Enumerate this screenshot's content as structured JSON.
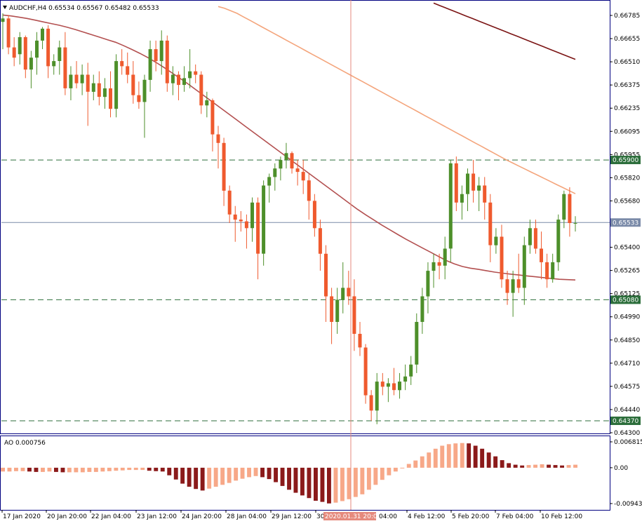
{
  "window": {
    "title": "AUDCHF,H4  0.65534 0.65567 0.65482 0.65533"
  },
  "indicator": {
    "label": "AO 0.000756"
  },
  "colors": {
    "bull": "#4d8f2a",
    "bear": "#ef5a2e",
    "ma_fast": "#b35050",
    "ma_mid": "#f4a57c",
    "ma_slow": "#7b1414",
    "ao_up": "#f7a888",
    "ao_down": "#8b1a1a",
    "level_line": "#2c6e3b",
    "price_line": "#7a8aa8",
    "crosshair": "#e58a7d",
    "frame": "#000080"
  },
  "price_axis": {
    "ticks": [
      "0.66785",
      "0.66655",
      "0.66510",
      "0.66375",
      "0.66235",
      "0.66095",
      "0.65955",
      "0.65820",
      "0.65680",
      "0.65540",
      "0.65400",
      "0.65265",
      "0.65125",
      "0.64990",
      "0.64850",
      "0.64710",
      "0.64575",
      "0.64440",
      "0.64300"
    ],
    "tags": [
      {
        "text": "0.65900",
        "kind": "level"
      },
      {
        "text": "0.65533",
        "kind": "price"
      },
      {
        "text": "0.65080",
        "kind": "level"
      },
      {
        "text": "0.64370",
        "kind": "level"
      }
    ]
  },
  "ao_axis": {
    "ticks": [
      "0.006815",
      "0.00",
      "-0.009438"
    ]
  },
  "time_axis": {
    "labels": [
      "17 Jan 2020",
      "20 Jan 20:00",
      "22 Jan 04:00",
      "23 Jan 12:00",
      "24 Jan 20:00",
      "28 Jan 04:00",
      "29 Jan 12:00",
      "30",
      "4 Feb 12:00",
      "5 Feb 20:00",
      "7 Feb 04:00",
      "10 Feb 12:00"
    ],
    "crosshair_time": "2020.01.31 20:00",
    "crosshair_after": "04:00"
  },
  "chart_data": {
    "type": "candlestick",
    "symbol": "AUDCHF",
    "timeframe": "H4",
    "y_range": [
      0.643,
      0.6683
    ],
    "levels": [
      0.659,
      0.6508,
      0.6437
    ],
    "last_price": 0.65533,
    "candles": [
      {
        "o": 0.6671,
        "h": 0.6676,
        "l": 0.6655,
        "c": 0.6673
      },
      {
        "o": 0.6673,
        "h": 0.6675,
        "l": 0.6652,
        "c": 0.6656
      },
      {
        "o": 0.6656,
        "h": 0.6662,
        "l": 0.6645,
        "c": 0.665
      },
      {
        "o": 0.6652,
        "h": 0.6665,
        "l": 0.6646,
        "c": 0.6662
      },
      {
        "o": 0.6662,
        "h": 0.6663,
        "l": 0.6638,
        "c": 0.6643
      },
      {
        "o": 0.6643,
        "h": 0.6654,
        "l": 0.6632,
        "c": 0.665
      },
      {
        "o": 0.665,
        "h": 0.6665,
        "l": 0.664,
        "c": 0.666
      },
      {
        "o": 0.666,
        "h": 0.6668,
        "l": 0.6655,
        "c": 0.6667
      },
      {
        "o": 0.6667,
        "h": 0.6669,
        "l": 0.6638,
        "c": 0.6645
      },
      {
        "o": 0.6645,
        "h": 0.6652,
        "l": 0.664,
        "c": 0.6648
      },
      {
        "o": 0.6648,
        "h": 0.666,
        "l": 0.664,
        "c": 0.6656
      },
      {
        "o": 0.6656,
        "h": 0.6665,
        "l": 0.6628,
        "c": 0.6632
      },
      {
        "o": 0.6632,
        "h": 0.6645,
        "l": 0.6625,
        "c": 0.664
      },
      {
        "o": 0.664,
        "h": 0.6648,
        "l": 0.6632,
        "c": 0.6635
      },
      {
        "o": 0.6635,
        "h": 0.6646,
        "l": 0.6628,
        "c": 0.664
      },
      {
        "o": 0.664,
        "h": 0.6647,
        "l": 0.661,
        "c": 0.663
      },
      {
        "o": 0.663,
        "h": 0.664,
        "l": 0.6625,
        "c": 0.6635
      },
      {
        "o": 0.6635,
        "h": 0.6642,
        "l": 0.6622,
        "c": 0.6627
      },
      {
        "o": 0.6627,
        "h": 0.6638,
        "l": 0.662,
        "c": 0.6632
      },
      {
        "o": 0.6632,
        "h": 0.6642,
        "l": 0.6615,
        "c": 0.662
      },
      {
        "o": 0.662,
        "h": 0.6652,
        "l": 0.6615,
        "c": 0.6648
      },
      {
        "o": 0.6648,
        "h": 0.6655,
        "l": 0.664,
        "c": 0.6645
      },
      {
        "o": 0.6645,
        "h": 0.6653,
        "l": 0.6635,
        "c": 0.664
      },
      {
        "o": 0.664,
        "h": 0.6648,
        "l": 0.6623,
        "c": 0.6628
      },
      {
        "o": 0.6628,
        "h": 0.6636,
        "l": 0.662,
        "c": 0.6624
      },
      {
        "o": 0.6624,
        "h": 0.664,
        "l": 0.6603,
        "c": 0.6637
      },
      {
        "o": 0.6637,
        "h": 0.666,
        "l": 0.663,
        "c": 0.6655
      },
      {
        "o": 0.6655,
        "h": 0.666,
        "l": 0.6642,
        "c": 0.6648
      },
      {
        "o": 0.6648,
        "h": 0.6666,
        "l": 0.664,
        "c": 0.666
      },
      {
        "o": 0.666,
        "h": 0.6663,
        "l": 0.663,
        "c": 0.6635
      },
      {
        "o": 0.6635,
        "h": 0.6645,
        "l": 0.6628,
        "c": 0.664
      },
      {
        "o": 0.664,
        "h": 0.6642,
        "l": 0.6625,
        "c": 0.6634
      },
      {
        "o": 0.6634,
        "h": 0.6645,
        "l": 0.663,
        "c": 0.6638
      },
      {
        "o": 0.6638,
        "h": 0.6655,
        "l": 0.6632,
        "c": 0.6642
      },
      {
        "o": 0.6642,
        "h": 0.6646,
        "l": 0.6635,
        "c": 0.664
      },
      {
        "o": 0.664,
        "h": 0.6642,
        "l": 0.6617,
        "c": 0.6622
      },
      {
        "o": 0.6622,
        "h": 0.663,
        "l": 0.6615,
        "c": 0.6625
      },
      {
        "o": 0.6625,
        "h": 0.6626,
        "l": 0.6595,
        "c": 0.6605
      },
      {
        "o": 0.6605,
        "h": 0.661,
        "l": 0.6585,
        "c": 0.66
      },
      {
        "o": 0.66,
        "h": 0.6603,
        "l": 0.6563,
        "c": 0.6572
      },
      {
        "o": 0.6572,
        "h": 0.6575,
        "l": 0.6553,
        "c": 0.6558
      },
      {
        "o": 0.6558,
        "h": 0.6563,
        "l": 0.6542,
        "c": 0.6555
      },
      {
        "o": 0.6555,
        "h": 0.656,
        "l": 0.6548,
        "c": 0.6554
      },
      {
        "o": 0.6554,
        "h": 0.6558,
        "l": 0.6538,
        "c": 0.655
      },
      {
        "o": 0.655,
        "h": 0.6568,
        "l": 0.6542,
        "c": 0.6565
      },
      {
        "o": 0.6565,
        "h": 0.6568,
        "l": 0.652,
        "c": 0.6535
      },
      {
        "o": 0.6535,
        "h": 0.6578,
        "l": 0.6528,
        "c": 0.6575
      },
      {
        "o": 0.6575,
        "h": 0.6582,
        "l": 0.6565,
        "c": 0.658
      },
      {
        "o": 0.658,
        "h": 0.6588,
        "l": 0.6572,
        "c": 0.6585
      },
      {
        "o": 0.6585,
        "h": 0.6592,
        "l": 0.6578,
        "c": 0.659
      },
      {
        "o": 0.659,
        "h": 0.66,
        "l": 0.6585,
        "c": 0.6594
      },
      {
        "o": 0.6594,
        "h": 0.6595,
        "l": 0.6582,
        "c": 0.6585
      },
      {
        "o": 0.6585,
        "h": 0.659,
        "l": 0.6575,
        "c": 0.6583
      },
      {
        "o": 0.6583,
        "h": 0.659,
        "l": 0.657,
        "c": 0.6578
      },
      {
        "o": 0.6578,
        "h": 0.6582,
        "l": 0.6555,
        "c": 0.6566
      },
      {
        "o": 0.6566,
        "h": 0.657,
        "l": 0.6545,
        "c": 0.655
      },
      {
        "o": 0.655,
        "h": 0.6555,
        "l": 0.6525,
        "c": 0.6535
      },
      {
        "o": 0.6535,
        "h": 0.654,
        "l": 0.6495,
        "c": 0.651
      },
      {
        "o": 0.651,
        "h": 0.6515,
        "l": 0.6482,
        "c": 0.6495
      },
      {
        "o": 0.6495,
        "h": 0.6515,
        "l": 0.6488,
        "c": 0.6508
      },
      {
        "o": 0.6508,
        "h": 0.653,
        "l": 0.65,
        "c": 0.6515
      },
      {
        "o": 0.6515,
        "h": 0.6525,
        "l": 0.6505,
        "c": 0.651
      },
      {
        "o": 0.651,
        "h": 0.652,
        "l": 0.6478,
        "c": 0.6488
      },
      {
        "o": 0.6488,
        "h": 0.6495,
        "l": 0.6475,
        "c": 0.648
      },
      {
        "o": 0.648,
        "h": 0.6482,
        "l": 0.6447,
        "c": 0.6452
      },
      {
        "o": 0.6452,
        "h": 0.6455,
        "l": 0.6437,
        "c": 0.6443
      },
      {
        "o": 0.6443,
        "h": 0.6465,
        "l": 0.6435,
        "c": 0.646
      },
      {
        "o": 0.646,
        "h": 0.6465,
        "l": 0.6452,
        "c": 0.6457
      },
      {
        "o": 0.6457,
        "h": 0.6462,
        "l": 0.6448,
        "c": 0.6459
      },
      {
        "o": 0.6459,
        "h": 0.6468,
        "l": 0.6452,
        "c": 0.6455
      },
      {
        "o": 0.6455,
        "h": 0.6465,
        "l": 0.645,
        "c": 0.646
      },
      {
        "o": 0.646,
        "h": 0.647,
        "l": 0.6455,
        "c": 0.6463
      },
      {
        "o": 0.6463,
        "h": 0.6475,
        "l": 0.6458,
        "c": 0.647
      },
      {
        "o": 0.647,
        "h": 0.65,
        "l": 0.6465,
        "c": 0.6495
      },
      {
        "o": 0.6495,
        "h": 0.6515,
        "l": 0.6488,
        "c": 0.651
      },
      {
        "o": 0.651,
        "h": 0.653,
        "l": 0.65,
        "c": 0.6525
      },
      {
        "o": 0.6525,
        "h": 0.6535,
        "l": 0.6515,
        "c": 0.653
      },
      {
        "o": 0.653,
        "h": 0.6535,
        "l": 0.652,
        "c": 0.6528
      },
      {
        "o": 0.6528,
        "h": 0.6545,
        "l": 0.652,
        "c": 0.6538
      },
      {
        "o": 0.6538,
        "h": 0.659,
        "l": 0.653,
        "c": 0.6588
      },
      {
        "o": 0.6588,
        "h": 0.6592,
        "l": 0.656,
        "c": 0.6565
      },
      {
        "o": 0.6565,
        "h": 0.6575,
        "l": 0.6555,
        "c": 0.657
      },
      {
        "o": 0.657,
        "h": 0.6585,
        "l": 0.656,
        "c": 0.6582
      },
      {
        "o": 0.6582,
        "h": 0.659,
        "l": 0.6565,
        "c": 0.6572
      },
      {
        "o": 0.6572,
        "h": 0.658,
        "l": 0.656,
        "c": 0.6575
      },
      {
        "o": 0.6575,
        "h": 0.658,
        "l": 0.6555,
        "c": 0.6565
      },
      {
        "o": 0.6565,
        "h": 0.657,
        "l": 0.653,
        "c": 0.654
      },
      {
        "o": 0.654,
        "h": 0.655,
        "l": 0.6535,
        "c": 0.6545
      },
      {
        "o": 0.6545,
        "h": 0.6552,
        "l": 0.6515,
        "c": 0.652
      },
      {
        "o": 0.652,
        "h": 0.6525,
        "l": 0.6505,
        "c": 0.6512
      },
      {
        "o": 0.6512,
        "h": 0.6525,
        "l": 0.6498,
        "c": 0.652
      },
      {
        "o": 0.652,
        "h": 0.6535,
        "l": 0.6512,
        "c": 0.6515
      },
      {
        "o": 0.6515,
        "h": 0.6545,
        "l": 0.6505,
        "c": 0.654
      },
      {
        "o": 0.654,
        "h": 0.6555,
        "l": 0.6535,
        "c": 0.655
      },
      {
        "o": 0.655,
        "h": 0.6555,
        "l": 0.6535,
        "c": 0.6538
      },
      {
        "o": 0.6538,
        "h": 0.6548,
        "l": 0.652,
        "c": 0.653
      },
      {
        "o": 0.653,
        "h": 0.6535,
        "l": 0.6515,
        "c": 0.652
      },
      {
        "o": 0.652,
        "h": 0.6535,
        "l": 0.6518,
        "c": 0.653
      },
      {
        "o": 0.653,
        "h": 0.6558,
        "l": 0.6525,
        "c": 0.6555
      },
      {
        "o": 0.6555,
        "h": 0.6572,
        "l": 0.655,
        "c": 0.657
      },
      {
        "o": 0.657,
        "h": 0.6574,
        "l": 0.6545,
        "c": 0.6553
      },
      {
        "o": 0.6553,
        "h": 0.6557,
        "l": 0.6548,
        "c": 0.6553
      }
    ],
    "ma_fast": [
      0.6675,
      0.66745,
      0.66738,
      0.6673,
      0.6672,
      0.6671,
      0.667,
      0.6669,
      0.66678,
      0.66665,
      0.6665,
      0.66635,
      0.6662,
      0.66605,
      0.6659,
      0.6657,
      0.66548,
      0.66525,
      0.665,
      0.66472,
      0.66442,
      0.6641,
      0.66378,
      0.66345,
      0.6631,
      0.66275,
      0.6624,
      0.66205,
      0.6617,
      0.66135,
      0.661,
      0.66065,
      0.6603,
      0.65995,
      0.6596,
      0.65925,
      0.6589,
      0.65855,
      0.6582,
      0.65785,
      0.6575,
      0.65715,
      0.6568,
      0.65645,
      0.6561,
      0.65578,
      0.65548,
      0.65518,
      0.6549,
      0.65462,
      0.65435,
      0.6541,
      0.65385,
      0.6536,
      0.65335,
      0.6531,
      0.6529,
      0.65275,
      0.65265,
      0.65258,
      0.6525,
      0.65242,
      0.65236,
      0.6523,
      0.65225,
      0.6522,
      0.65215,
      0.6521,
      0.65205,
      0.652,
      0.65198,
      0.65196
    ],
    "ma_mid": [
      0.668,
      0.6679,
      0.66775,
      0.6676,
      0.6674,
      0.6672,
      0.667,
      0.6668,
      0.6666,
      0.6664,
      0.6662,
      0.666,
      0.6658,
      0.6656,
      0.6654,
      0.6652,
      0.665,
      0.6648,
      0.6646,
      0.6644,
      0.6642,
      0.664,
      0.6638,
      0.6636,
      0.6634,
      0.6632,
      0.663,
      0.6628,
      0.6626,
      0.6624,
      0.6622,
      0.662,
      0.6618,
      0.6616,
      0.6614,
      0.6612,
      0.661,
      0.6608,
      0.6606,
      0.6604,
      0.6602,
      0.66,
      0.6598,
      0.6596,
      0.6594,
      0.6592,
      0.659,
      0.65882,
      0.65864,
      0.65846,
      0.65828,
      0.6581,
      0.65792,
      0.65774,
      0.65756,
      0.65738,
      0.6572,
      0.65702
    ],
    "ma_slow": [
      0.6682,
      0.66805,
      0.6679,
      0.66775,
      0.6676,
      0.66745,
      0.6673,
      0.66715,
      0.667,
      0.66685,
      0.6667,
      0.66655,
      0.6664,
      0.66625,
      0.6661,
      0.66595,
      0.6658,
      0.66565,
      0.6655,
      0.66535,
      0.6652,
      0.66505,
      0.6649
    ]
  },
  "ao_data": {
    "values": [
      -0.001,
      -0.001,
      -0.0009,
      -0.0009,
      -0.001,
      -0.0011,
      -0.0011,
      -0.001,
      -0.0011,
      -0.0012,
      -0.0012,
      -0.0012,
      -0.0012,
      -0.0011,
      -0.0011,
      -0.001,
      -0.0009,
      -0.0008,
      -0.0007,
      -0.0006,
      -0.0006,
      -0.0006,
      -0.0008,
      -0.0009,
      -0.001,
      -0.002,
      -0.0031,
      -0.0042,
      -0.005,
      -0.0056,
      -0.006,
      -0.0055,
      -0.005,
      -0.0045,
      -0.004,
      -0.0034,
      -0.0029,
      -0.0025,
      -0.0022,
      -0.0025,
      -0.003,
      -0.0038,
      -0.0048,
      -0.0058,
      -0.0066,
      -0.0073,
      -0.008,
      -0.0087,
      -0.009,
      -0.0094,
      -0.0092,
      -0.0088,
      -0.0083,
      -0.0077,
      -0.007,
      -0.0058,
      -0.0045,
      -0.0032,
      -0.002,
      -0.001,
      0.0,
      0.001,
      0.0019,
      0.003,
      0.004,
      0.005,
      0.0058,
      0.0062,
      0.0064,
      0.0065,
      0.0064,
      0.0058,
      0.005,
      0.004,
      0.003,
      0.002,
      0.0012,
      0.0008,
      0.0006,
      0.0007,
      0.0008,
      0.0009,
      0.0008,
      0.0007,
      0.0006,
      0.0007,
      0.0008
    ]
  }
}
